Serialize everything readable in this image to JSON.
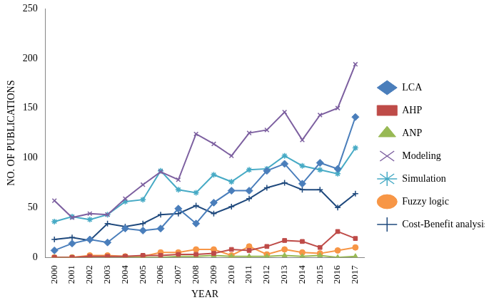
{
  "chart_data": {
    "type": "line",
    "x_label": "YEAR",
    "y_label": "NO. OF PUBLICATIONS",
    "categories": [
      "2000",
      "2001",
      "2002",
      "2003",
      "2004",
      "2005",
      "2006",
      "2007",
      "2008",
      "2009",
      "2010",
      "2011",
      "2012",
      "2013",
      "2014",
      "2015",
      "2016",
      "2017"
    ],
    "ylim": [
      0,
      250
    ],
    "yticks": [
      0,
      50,
      100,
      150,
      200,
      250
    ],
    "grid": false,
    "legend": "right",
    "series": [
      {
        "name": "LCA",
        "color": "#4a7ebb",
        "marker": "diamond",
        "values": [
          7,
          14,
          18,
          15,
          29,
          27,
          29,
          49,
          34,
          55,
          67,
          67,
          87,
          94,
          74,
          95,
          89,
          141
        ]
      },
      {
        "name": "AHP",
        "color": "#be4b48",
        "marker": "square",
        "values": [
          0,
          0,
          1,
          1,
          1,
          2,
          2,
          3,
          3,
          4,
          8,
          7,
          11,
          17,
          16,
          10,
          26,
          19
        ]
      },
      {
        "name": "ANP",
        "color": "#98b954",
        "marker": "triangle",
        "values": [
          0,
          0,
          0,
          0,
          0,
          0,
          0,
          1,
          1,
          2,
          1,
          1,
          1,
          2,
          1,
          2,
          0,
          1
        ]
      },
      {
        "name": "Modeling",
        "color": "#7d60a0",
        "marker": "x",
        "values": [
          57,
          40,
          44,
          43,
          59,
          73,
          86,
          78,
          124,
          114,
          102,
          125,
          128,
          146,
          118,
          143,
          150,
          194
        ]
      },
      {
        "name": "Simulation",
        "color": "#46aac5",
        "marker": "star",
        "values": [
          36,
          41,
          38,
          43,
          56,
          58,
          87,
          68,
          65,
          83,
          76,
          88,
          89,
          102,
          92,
          88,
          84,
          110
        ]
      },
      {
        "name": "Fuzzy logic",
        "color": "#f79646",
        "marker": "circle",
        "values": [
          0,
          0,
          2,
          2,
          1,
          1,
          5,
          5,
          8,
          8,
          2,
          11,
          3,
          8,
          5,
          4,
          7,
          10
        ]
      },
      {
        "name": "Cost-Benefit analysis",
        "color": "#1f497d",
        "marker": "plus",
        "values": [
          18,
          20,
          17,
          34,
          31,
          34,
          43,
          44,
          52,
          44,
          51,
          59,
          70,
          75,
          68,
          68,
          50,
          64
        ]
      }
    ]
  }
}
